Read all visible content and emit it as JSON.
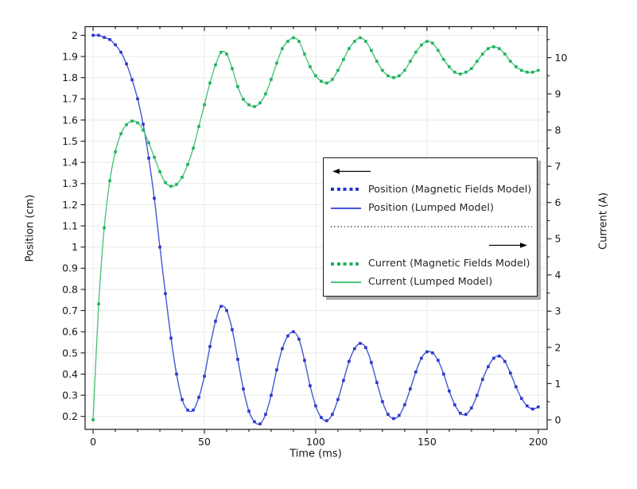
{
  "figure": {
    "background": "#ffffff"
  },
  "chart_data": {
    "type": "line",
    "title": "",
    "xlabel": "Time (ms)",
    "ylabel_left": "Position (cm)",
    "ylabel_right": "Current (A)",
    "xlim": [
      -3.6,
      204
    ],
    "ylim_left": [
      0.139,
      2.041
    ],
    "ylim_right": [
      -0.264,
      10.857
    ],
    "xticks": [
      0,
      50,
      100,
      150,
      200
    ],
    "x_minor_step": 10,
    "yticks_left": [
      0.2,
      0.3,
      0.4,
      0.5,
      0.6,
      0.7,
      0.8,
      0.9,
      1,
      1.1,
      1.2,
      1.3,
      1.4,
      1.5,
      1.6,
      1.7,
      1.8,
      1.9,
      2
    ],
    "yticks_right": [
      0,
      1,
      2,
      3,
      4,
      5,
      6,
      7,
      8,
      9,
      10
    ],
    "y_right_minor_step": 0.5,
    "grid": {
      "show": true,
      "color": "#e9e9e9"
    },
    "frame_color": "#1a1a1a",
    "x": [
      0,
      2.5,
      5,
      7.5,
      10,
      12.5,
      15,
      17.5,
      20,
      22.5,
      25,
      27.5,
      30,
      32.5,
      35,
      37.5,
      40,
      42.5,
      45,
      47.5,
      50,
      52.5,
      55,
      57.5,
      60,
      62.5,
      65,
      67.5,
      70,
      72.5,
      75,
      77.5,
      80,
      82.5,
      85,
      87.5,
      90,
      92.5,
      95,
      97.5,
      100,
      102.5,
      105,
      107.5,
      110,
      112.5,
      115,
      117.5,
      120,
      122.5,
      125,
      127.5,
      130,
      132.5,
      135,
      137.5,
      140,
      142.5,
      145,
      147.5,
      150,
      152.5,
      155,
      157.5,
      160,
      162.5,
      165,
      167.5,
      170,
      172.5,
      175,
      177.5,
      180,
      182.5,
      185,
      187.5,
      190,
      192.5,
      195,
      197.5,
      200
    ],
    "position_cm": [
      2.0,
      2.0,
      1.99,
      1.98,
      1.955,
      1.92,
      1.865,
      1.79,
      1.7,
      1.58,
      1.42,
      1.23,
      1.0,
      0.78,
      0.57,
      0.4,
      0.28,
      0.23,
      0.23,
      0.29,
      0.39,
      0.53,
      0.65,
      0.72,
      0.7,
      0.61,
      0.47,
      0.33,
      0.225,
      0.175,
      0.165,
      0.21,
      0.3,
      0.42,
      0.52,
      0.58,
      0.6,
      0.565,
      0.465,
      0.345,
      0.25,
      0.195,
      0.18,
      0.21,
      0.28,
      0.37,
      0.46,
      0.52,
      0.545,
      0.525,
      0.455,
      0.36,
      0.27,
      0.21,
      0.19,
      0.205,
      0.255,
      0.33,
      0.41,
      0.475,
      0.505,
      0.5,
      0.465,
      0.4,
      0.32,
      0.255,
      0.215,
      0.21,
      0.24,
      0.3,
      0.375,
      0.435,
      0.475,
      0.485,
      0.46,
      0.405,
      0.34,
      0.285,
      0.25,
      0.235,
      0.245
    ],
    "current_A": [
      0.0,
      3.2,
      5.3,
      6.6,
      7.4,
      7.9,
      8.15,
      8.25,
      8.2,
      8.0,
      7.65,
      7.25,
      6.85,
      6.55,
      6.45,
      6.5,
      6.7,
      7.05,
      7.5,
      8.1,
      8.7,
      9.3,
      9.8,
      10.15,
      10.1,
      9.7,
      9.2,
      8.85,
      8.7,
      8.65,
      8.75,
      9.0,
      9.4,
      9.85,
      10.25,
      10.45,
      10.55,
      10.45,
      10.1,
      9.75,
      9.5,
      9.35,
      9.3,
      9.4,
      9.65,
      9.95,
      10.25,
      10.45,
      10.55,
      10.45,
      10.2,
      9.9,
      9.65,
      9.5,
      9.45,
      9.5,
      9.65,
      9.9,
      10.15,
      10.35,
      10.45,
      10.4,
      10.2,
      9.95,
      9.75,
      9.6,
      9.55,
      9.6,
      9.7,
      9.9,
      10.1,
      10.25,
      10.3,
      10.25,
      10.1,
      9.9,
      9.75,
      9.65,
      9.6,
      9.6,
      9.65
    ],
    "series": [
      {
        "name": "Position (Magnetic Fields Model)",
        "axis": "left",
        "style": "dotted",
        "color": "#2936cc",
        "data": "position_cm"
      },
      {
        "name": "Position (Lumped Model)",
        "axis": "left",
        "style": "solid",
        "color": "#4357d8",
        "data": "position_cm"
      },
      {
        "name": "Current (Magnetic Fields Model)",
        "axis": "right",
        "style": "dotted",
        "color": "#1cb35c",
        "data": "current_A"
      },
      {
        "name": "Current (Lumped Model)",
        "axis": "right",
        "style": "solid",
        "color": "#4cc57c",
        "data": "current_A"
      }
    ],
    "legend": {
      "position": "center-right",
      "left_axis_arrow_icon": "left-arrow",
      "right_axis_arrow_icon": "right-arrow",
      "separator": "dotted-line"
    }
  }
}
